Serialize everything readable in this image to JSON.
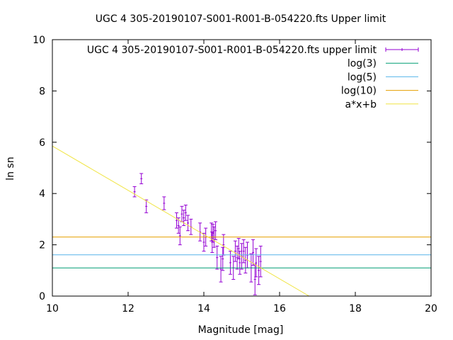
{
  "chart_data": {
    "type": "scatter",
    "title": "UGC 4 305-20190107-S001-R001-B-054220.fts Upper limit",
    "xlabel": "Magnitude [mag]",
    "ylabel": "ln sn",
    "xlim": [
      10,
      20
    ],
    "ylim": [
      0,
      10
    ],
    "xticks": [
      "10",
      "12",
      "14",
      "16",
      "18",
      "20"
    ],
    "yticks": [
      "0",
      "2",
      "4",
      "6",
      "8",
      "10"
    ],
    "grid": false,
    "legend_position": "top-right",
    "series": [
      {
        "name": "UGC 4 305-20190107-S001-R001-B-054220.fts upper limit",
        "kind": "errorbars",
        "color": "#9400d3",
        "points": [
          {
            "x": 12.17,
            "y": 4.07,
            "err": 0.2
          },
          {
            "x": 12.35,
            "y": 4.58,
            "err": 0.2
          },
          {
            "x": 12.48,
            "y": 3.5,
            "err": 0.25
          },
          {
            "x": 12.95,
            "y": 3.62,
            "err": 0.25
          },
          {
            "x": 13.28,
            "y": 2.95,
            "err": 0.3
          },
          {
            "x": 13.33,
            "y": 2.75,
            "err": 0.3
          },
          {
            "x": 13.37,
            "y": 2.35,
            "err": 0.35
          },
          {
            "x": 13.42,
            "y": 3.2,
            "err": 0.3
          },
          {
            "x": 13.47,
            "y": 3.05,
            "err": 0.3
          },
          {
            "x": 13.52,
            "y": 3.25,
            "err": 0.3
          },
          {
            "x": 13.58,
            "y": 2.85,
            "err": 0.3
          },
          {
            "x": 13.66,
            "y": 2.7,
            "err": 0.3
          },
          {
            "x": 13.9,
            "y": 2.5,
            "err": 0.35
          },
          {
            "x": 14.0,
            "y": 2.1,
            "err": 0.35
          },
          {
            "x": 14.05,
            "y": 2.3,
            "err": 0.35
          },
          {
            "x": 14.2,
            "y": 2.5,
            "err": 0.35
          },
          {
            "x": 14.22,
            "y": 2.1,
            "err": 0.4
          },
          {
            "x": 14.24,
            "y": 2.45,
            "err": 0.35
          },
          {
            "x": 14.27,
            "y": 2.3,
            "err": 0.4
          },
          {
            "x": 14.31,
            "y": 2.55,
            "err": 0.35
          },
          {
            "x": 14.35,
            "y": 1.5,
            "err": 0.45
          },
          {
            "x": 14.45,
            "y": 1.05,
            "err": 0.5
          },
          {
            "x": 14.5,
            "y": 1.45,
            "err": 0.45
          },
          {
            "x": 14.52,
            "y": 2.0,
            "err": 0.4
          },
          {
            "x": 14.7,
            "y": 1.3,
            "err": 0.45
          },
          {
            "x": 14.78,
            "y": 1.1,
            "err": 0.45
          },
          {
            "x": 14.83,
            "y": 1.75,
            "err": 0.4
          },
          {
            "x": 14.88,
            "y": 1.5,
            "err": 0.45
          },
          {
            "x": 14.92,
            "y": 1.85,
            "err": 0.4
          },
          {
            "x": 14.95,
            "y": 1.3,
            "err": 0.45
          },
          {
            "x": 15.0,
            "y": 1.55,
            "err": 0.5
          },
          {
            "x": 15.05,
            "y": 1.75,
            "err": 0.45
          },
          {
            "x": 15.1,
            "y": 1.4,
            "err": 0.5
          },
          {
            "x": 15.15,
            "y": 1.6,
            "err": 0.5
          },
          {
            "x": 15.25,
            "y": 1.1,
            "err": 0.55
          },
          {
            "x": 15.3,
            "y": 1.7,
            "err": 0.5
          },
          {
            "x": 15.35,
            "y": 0.65,
            "err": 0.6
          },
          {
            "x": 15.38,
            "y": 1.3,
            "err": 0.55
          },
          {
            "x": 15.45,
            "y": 1.0,
            "err": 0.55
          },
          {
            "x": 15.5,
            "y": 1.35,
            "err": 0.6
          }
        ]
      },
      {
        "name": "log(3)",
        "kind": "hline",
        "color": "#009e73",
        "y": 1.0986
      },
      {
        "name": "log(5)",
        "kind": "hline",
        "color": "#56b4e9",
        "y": 1.6094
      },
      {
        "name": "log(10)",
        "kind": "hline",
        "color": "#e69f00",
        "y": 2.3026
      },
      {
        "name": "a*x+b",
        "kind": "line",
        "color": "#f0e442",
        "x": [
          10,
          16.78
        ],
        "y": [
          5.85,
          0
        ]
      }
    ]
  }
}
